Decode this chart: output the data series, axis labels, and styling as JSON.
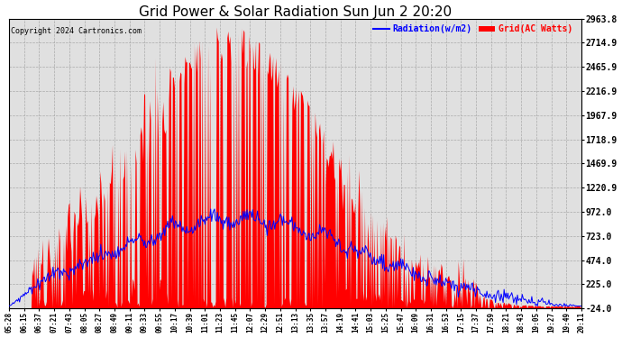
{
  "title": "Grid Power & Solar Radiation Sun Jun 2 20:20",
  "copyright": "Copyright 2024 Cartronics.com",
  "legend_radiation": "Radiation(w/m2)",
  "legend_grid": "Grid(AC Watts)",
  "yticks": [
    -24.0,
    225.0,
    474.0,
    723.0,
    972.0,
    1220.9,
    1469.9,
    1718.9,
    1967.9,
    2216.9,
    2465.9,
    2714.9,
    2963.8
  ],
  "ytick_labels": [
    "-24.0",
    "225.0",
    "474.0",
    "723.0",
    "972.0",
    "1220.9",
    "1469.9",
    "1718.9",
    "1967.9",
    "2216.9",
    "2465.9",
    "2714.9",
    "2963.8"
  ],
  "ymin": -24.0,
  "ymax": 2963.8,
  "xtick_labels": [
    "05:28",
    "06:15",
    "06:37",
    "07:21",
    "07:43",
    "08:05",
    "08:27",
    "08:49",
    "09:11",
    "09:33",
    "09:55",
    "10:17",
    "10:39",
    "11:01",
    "11:23",
    "11:45",
    "12:07",
    "12:29",
    "12:51",
    "13:13",
    "13:35",
    "13:57",
    "14:19",
    "14:41",
    "15:03",
    "15:25",
    "15:47",
    "16:09",
    "16:31",
    "16:53",
    "17:15",
    "17:37",
    "17:59",
    "18:21",
    "18:43",
    "19:05",
    "19:27",
    "19:49",
    "20:11"
  ],
  "background_color": "#ffffff",
  "plot_background": "#e0e0e0",
  "grid_color": "#aaaaaa",
  "red_color": "#ff0000",
  "blue_color": "#0000ff",
  "title_color": "#000000",
  "copyright_color": "#000000",
  "legend_radiation_color": "#0000ff",
  "legend_grid_color": "#ff0000",
  "figwidth": 6.9,
  "figheight": 3.75,
  "dpi": 100
}
